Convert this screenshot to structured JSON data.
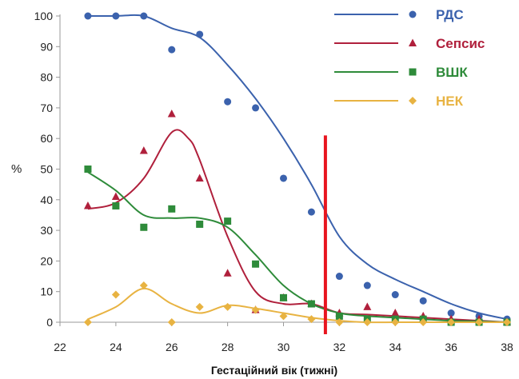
{
  "chart_data": {
    "type": "scatter",
    "title": "",
    "xlabel": "Гестаційний вік (тижні)",
    "ylabel": "%",
    "xlim": [
      22,
      38
    ],
    "ylim": [
      0,
      100
    ],
    "xticks": [
      22,
      24,
      26,
      28,
      30,
      32,
      34,
      36,
      38
    ],
    "yticks": [
      0,
      10,
      20,
      30,
      40,
      50,
      60,
      70,
      80,
      90,
      100
    ],
    "grid": false,
    "legend_position": "top-right",
    "series": [
      {
        "name": "РДС",
        "color": "#3b62ad",
        "marker": "circle",
        "points": [
          [
            23,
            100
          ],
          [
            24,
            100
          ],
          [
            25,
            100
          ],
          [
            26,
            89
          ],
          [
            27,
            94
          ],
          [
            28,
            72
          ],
          [
            29,
            70
          ],
          [
            30,
            47
          ],
          [
            31,
            36
          ],
          [
            32,
            15
          ],
          [
            33,
            12
          ],
          [
            34,
            9
          ],
          [
            35,
            7
          ],
          [
            36,
            3
          ],
          [
            37,
            2
          ],
          [
            38,
            1
          ]
        ],
        "trend": [
          [
            23,
            100
          ],
          [
            24,
            100
          ],
          [
            25,
            100
          ],
          [
            26,
            96
          ],
          [
            27,
            93
          ],
          [
            28,
            84
          ],
          [
            29,
            73
          ],
          [
            30,
            60
          ],
          [
            31,
            45
          ],
          [
            32,
            28
          ],
          [
            33,
            19
          ],
          [
            34,
            14
          ],
          [
            35,
            10
          ],
          [
            36,
            6
          ],
          [
            37,
            3
          ],
          [
            38,
            1
          ]
        ]
      },
      {
        "name": "Сепсис",
        "color": "#b0203c",
        "marker": "triangle",
        "points": [
          [
            23,
            38
          ],
          [
            24,
            41
          ],
          [
            25,
            56
          ],
          [
            26,
            68
          ],
          [
            27,
            47
          ],
          [
            28,
            16
          ],
          [
            29,
            4
          ],
          [
            30,
            8
          ],
          [
            31,
            6
          ],
          [
            32,
            3
          ],
          [
            33,
            5
          ],
          [
            34,
            3
          ],
          [
            35,
            2
          ],
          [
            36,
            1
          ],
          [
            37,
            1
          ],
          [
            38,
            0
          ]
        ],
        "trend": [
          [
            23,
            37
          ],
          [
            24,
            39
          ],
          [
            25,
            47
          ],
          [
            26,
            62
          ],
          [
            26.6,
            60
          ],
          [
            27,
            53
          ],
          [
            28,
            28
          ],
          [
            29,
            10
          ],
          [
            30,
            6
          ],
          [
            31,
            6
          ],
          [
            32,
            3
          ],
          [
            33,
            2.5
          ],
          [
            34,
            2
          ],
          [
            35,
            1.5
          ],
          [
            36,
            1
          ],
          [
            37,
            0.5
          ],
          [
            38,
            0
          ]
        ]
      },
      {
        "name": "ВШК",
        "color": "#2e8b3a",
        "marker": "square",
        "points": [
          [
            23,
            50
          ],
          [
            24,
            38
          ],
          [
            25,
            31
          ],
          [
            26,
            37
          ],
          [
            27,
            32
          ],
          [
            28,
            33
          ],
          [
            29,
            19
          ],
          [
            30,
            8
          ],
          [
            31,
            6
          ],
          [
            32,
            2
          ],
          [
            33,
            1
          ],
          [
            34,
            1
          ],
          [
            35,
            1
          ],
          [
            36,
            0
          ],
          [
            37,
            0
          ],
          [
            38,
            0
          ]
        ],
        "trend": [
          [
            23,
            49
          ],
          [
            24,
            43
          ],
          [
            25,
            35
          ],
          [
            26,
            34
          ],
          [
            27,
            34
          ],
          [
            28,
            31
          ],
          [
            29,
            22
          ],
          [
            30,
            12
          ],
          [
            31,
            6
          ],
          [
            32,
            3
          ],
          [
            33,
            2
          ],
          [
            34,
            1.5
          ],
          [
            35,
            1
          ],
          [
            36,
            0.5
          ],
          [
            37,
            0.3
          ],
          [
            38,
            0
          ]
        ]
      },
      {
        "name": "НЕК",
        "color": "#e8b342",
        "marker": "diamond",
        "points": [
          [
            23,
            0
          ],
          [
            24,
            9
          ],
          [
            25,
            12
          ],
          [
            26,
            0
          ],
          [
            27,
            5
          ],
          [
            28,
            5
          ],
          [
            29,
            4
          ],
          [
            30,
            2
          ],
          [
            31,
            1
          ],
          [
            32,
            0
          ],
          [
            33,
            0
          ],
          [
            34,
            0
          ],
          [
            35,
            0
          ],
          [
            36,
            0
          ],
          [
            37,
            0
          ],
          [
            38,
            0
          ]
        ],
        "trend": [
          [
            23,
            1
          ],
          [
            24,
            5
          ],
          [
            25,
            11
          ],
          [
            26,
            6
          ],
          [
            27,
            3
          ],
          [
            28,
            5.5
          ],
          [
            29,
            4.5
          ],
          [
            30,
            3
          ],
          [
            31,
            1.5
          ],
          [
            32,
            0.5
          ],
          [
            33,
            0
          ],
          [
            34,
            0
          ],
          [
            35,
            0
          ],
          [
            36,
            0
          ],
          [
            37,
            0
          ],
          [
            38,
            0
          ]
        ]
      }
    ],
    "annotations": [
      {
        "type": "vertical-line",
        "x": 31.5,
        "y_range": [
          0,
          61
        ],
        "color": "#e8151f"
      }
    ]
  }
}
